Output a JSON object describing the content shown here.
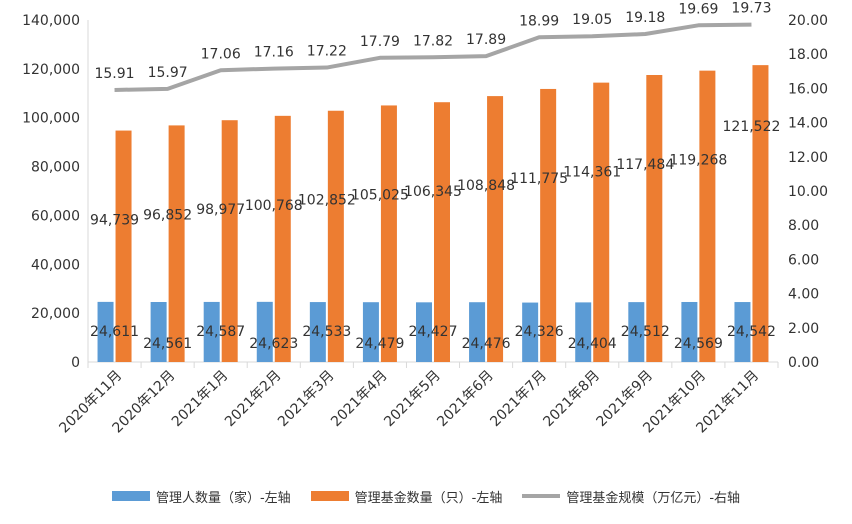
{
  "chart_data": {
    "type": "bar",
    "categories": [
      "2020年11月",
      "2020年12月",
      "2021年1月",
      "2021年2月",
      "2021年3月",
      "2021年4月",
      "2021年5月",
      "2021年6月",
      "2021年7月",
      "2021年8月",
      "2021年9月",
      "2021年10月",
      "2021年11月"
    ],
    "series": [
      {
        "name": "管理人数量（家）-左轴",
        "type": "bar",
        "axis": "left",
        "color": "#5B9BD5",
        "values": [
          24611,
          24561,
          24587,
          24623,
          24533,
          24479,
          24427,
          24476,
          24326,
          24404,
          24512,
          24569,
          24542
        ],
        "labels": [
          "24,611",
          "24,561",
          "24,587",
          "24,623",
          "24,533",
          "24,479",
          "24,427",
          "24,476",
          "24,326",
          "24,404",
          "24,512",
          "24,569",
          "24,542"
        ]
      },
      {
        "name": "管理基金数量（只）-左轴",
        "type": "bar",
        "axis": "left",
        "color": "#ED7D31",
        "values": [
          94739,
          96852,
          98977,
          100768,
          102852,
          105025,
          106345,
          108848,
          111775,
          114361,
          117484,
          119268,
          121522
        ],
        "labels": [
          "94,739",
          "96,852",
          "98,977",
          "100,768",
          "102,852",
          "105,025",
          "106,345",
          "108,848",
          "111,775",
          "114,361",
          "117,484",
          "119,268",
          "121,522"
        ]
      },
      {
        "name": "管理基金规模（万亿元）-右轴",
        "type": "line",
        "axis": "right",
        "color": "#A5A5A5",
        "values": [
          15.91,
          15.97,
          17.06,
          17.16,
          17.22,
          17.79,
          17.82,
          17.89,
          18.99,
          19.05,
          19.18,
          19.69,
          19.73
        ],
        "labels": [
          "15.91",
          "15.97",
          "17.06",
          "17.16",
          "17.22",
          "17.79",
          "17.82",
          "17.89",
          "18.99",
          "19.05",
          "19.18",
          "19.69",
          "19.73"
        ]
      }
    ],
    "y_left": {
      "min": 0,
      "max": 140000,
      "ticks": [
        "0",
        "20,000",
        "40,000",
        "60,000",
        "80,000",
        "100,000",
        "120,000",
        "140,000"
      ]
    },
    "y_right": {
      "min": 0,
      "max": 20,
      "ticks": [
        "0.00",
        "2.00",
        "4.00",
        "6.00",
        "8.00",
        "10.00",
        "12.00",
        "14.00",
        "16.00",
        "18.00",
        "20.00"
      ]
    },
    "grid": false,
    "legend_position": "bottom"
  }
}
